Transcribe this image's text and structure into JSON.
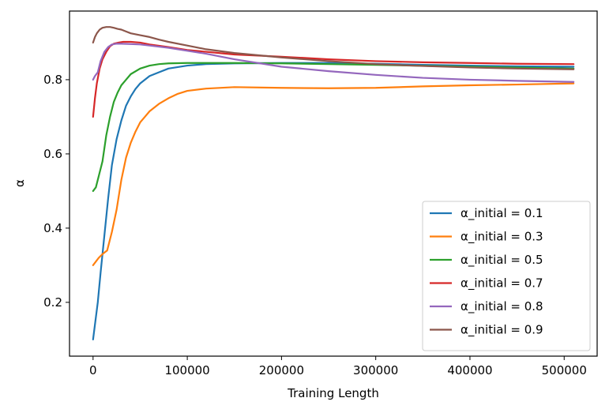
{
  "chart_data": {
    "type": "line",
    "xlabel": "Training Length",
    "ylabel": "α",
    "xlim": [
      -25000,
      535000
    ],
    "ylim": [
      0.055,
      0.985
    ],
    "xticks": [
      0,
      100000,
      200000,
      300000,
      400000,
      500000
    ],
    "xtick_labels": [
      "0",
      "100000",
      "200000",
      "300000",
      "400000",
      "500000"
    ],
    "yticks": [
      0.2,
      0.4,
      0.6,
      0.8
    ],
    "ytick_labels": [
      "0.2",
      "0.4",
      "0.6",
      "0.8"
    ],
    "grid": false,
    "legend_position": "bottom-right",
    "series": [
      {
        "name": "α_initial = 0.1",
        "color": "#1f77b4",
        "x": [
          0,
          2000,
          5000,
          8000,
          12000,
          16000,
          20000,
          25000,
          30000,
          35000,
          40000,
          45000,
          50000,
          60000,
          70000,
          80000,
          100000,
          120000,
          150000,
          200000,
          250000,
          300000,
          350000,
          400000,
          450000,
          510000
        ],
        "y": [
          0.1,
          0.14,
          0.2,
          0.28,
          0.38,
          0.48,
          0.57,
          0.64,
          0.69,
          0.73,
          0.755,
          0.775,
          0.79,
          0.81,
          0.82,
          0.83,
          0.838,
          0.842,
          0.844,
          0.845,
          0.845,
          0.843,
          0.84,
          0.838,
          0.836,
          0.835
        ]
      },
      {
        "name": "α_initial = 0.3",
        "color": "#ff7f0e",
        "x": [
          0,
          3000,
          6000,
          10000,
          15000,
          20000,
          25000,
          30000,
          35000,
          40000,
          45000,
          50000,
          55000,
          60000,
          70000,
          80000,
          90000,
          100000,
          120000,
          150000,
          200000,
          250000,
          300000,
          350000,
          400000,
          450000,
          510000
        ],
        "y": [
          0.3,
          0.31,
          0.32,
          0.33,
          0.34,
          0.39,
          0.45,
          0.53,
          0.59,
          0.63,
          0.66,
          0.685,
          0.7,
          0.715,
          0.735,
          0.75,
          0.762,
          0.77,
          0.776,
          0.78,
          0.778,
          0.777,
          0.778,
          0.782,
          0.785,
          0.787,
          0.79
        ]
      },
      {
        "name": "α_initial = 0.5",
        "color": "#2ca02c",
        "x": [
          0,
          3000,
          6000,
          10000,
          14000,
          18000,
          22000,
          26000,
          30000,
          35000,
          40000,
          50000,
          60000,
          70000,
          80000,
          100000,
          150000,
          200000,
          250000,
          300000,
          400000,
          510000
        ],
        "y": [
          0.5,
          0.51,
          0.54,
          0.58,
          0.65,
          0.7,
          0.74,
          0.765,
          0.785,
          0.8,
          0.815,
          0.83,
          0.838,
          0.842,
          0.844,
          0.845,
          0.845,
          0.844,
          0.842,
          0.84,
          0.835,
          0.83
        ]
      },
      {
        "name": "α_initial = 0.7",
        "color": "#d62728",
        "x": [
          0,
          2000,
          4000,
          7000,
          10000,
          14000,
          18000,
          22000,
          27000,
          32000,
          40000,
          50000,
          60000,
          80000,
          100000,
          150000,
          200000,
          250000,
          300000,
          350000,
          400000,
          450000,
          510000
        ],
        "y": [
          0.7,
          0.75,
          0.79,
          0.83,
          0.855,
          0.875,
          0.89,
          0.897,
          0.9,
          0.902,
          0.902,
          0.9,
          0.895,
          0.888,
          0.88,
          0.868,
          0.862,
          0.855,
          0.85,
          0.847,
          0.845,
          0.843,
          0.842
        ]
      },
      {
        "name": "α_initial = 0.8",
        "color": "#9467bd",
        "x": [
          0,
          2000,
          5000,
          8000,
          12000,
          16000,
          20000,
          25000,
          30000,
          40000,
          50000,
          60000,
          80000,
          100000,
          120000,
          150000,
          200000,
          250000,
          300000,
          350000,
          400000,
          450000,
          510000
        ],
        "y": [
          0.8,
          0.81,
          0.82,
          0.85,
          0.875,
          0.888,
          0.895,
          0.897,
          0.897,
          0.896,
          0.895,
          0.892,
          0.886,
          0.878,
          0.87,
          0.855,
          0.835,
          0.823,
          0.813,
          0.805,
          0.8,
          0.797,
          0.794
        ]
      },
      {
        "name": "α_initial = 0.9",
        "color": "#8c564b",
        "x": [
          0,
          2000,
          4000,
          7000,
          10000,
          14000,
          18000,
          22000,
          26000,
          30000,
          35000,
          40000,
          50000,
          60000,
          70000,
          80000,
          100000,
          120000,
          150000,
          200000,
          250000,
          300000,
          350000,
          400000,
          450000,
          510000
        ],
        "y": [
          0.9,
          0.915,
          0.925,
          0.935,
          0.94,
          0.942,
          0.942,
          0.94,
          0.937,
          0.935,
          0.93,
          0.925,
          0.92,
          0.915,
          0.908,
          0.902,
          0.892,
          0.882,
          0.872,
          0.86,
          0.85,
          0.842,
          0.837,
          0.833,
          0.83,
          0.828
        ]
      }
    ]
  }
}
